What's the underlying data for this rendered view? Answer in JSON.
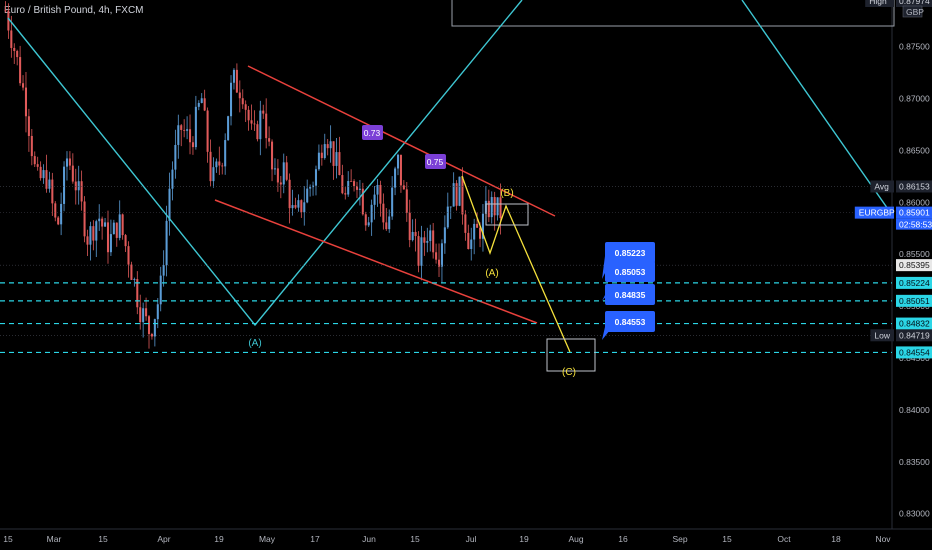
{
  "header": {
    "title": "Euro / British Pound, 4h, FXCM"
  },
  "colors": {
    "background": "#000000",
    "up": "#5b9cd6",
    "down": "#e05a5a",
    "channel": "#e8413c",
    "wave_cyan": "#3ec6d2",
    "wave_yellow": "#f5e13c",
    "level_dash": "#2bd6e6",
    "price_tag_blue": "#2962ff",
    "fib_purple": "#7b3fd6"
  },
  "chart_data": {
    "type": "candlestick",
    "symbol": "EURGBP",
    "timeframe": "4h",
    "ylim": [
      0.8265,
      0.8795
    ],
    "y_ticks": [
      0.83,
      0.835,
      0.84,
      0.845,
      0.85,
      0.855,
      0.86,
      0.865,
      0.87,
      0.875
    ],
    "y_tick_labels": [
      "0.83000",
      "0.83500",
      "0.84000",
      "0.84500",
      "0.85000",
      "0.85500",
      "0.86000",
      "0.86500",
      "0.87000",
      "0.87500"
    ],
    "x_ticks": [
      "15",
      "Mar",
      "15",
      "Apr",
      "19",
      "May",
      "17",
      "Jun",
      "15",
      "Jul",
      "19",
      "Aug",
      "16",
      "Sep",
      "15",
      "Oct",
      "18",
      "Nov"
    ],
    "price_path": [
      0.8785,
      0.8742,
      0.8695,
      0.862,
      0.8625,
      0.8572,
      0.8645,
      0.8612,
      0.8565,
      0.8588,
      0.856,
      0.8582,
      0.8545,
      0.85,
      0.8475,
      0.8512,
      0.8625,
      0.8672,
      0.8658,
      0.8702,
      0.8618,
      0.8645,
      0.8718,
      0.8708,
      0.8658,
      0.8692,
      0.8618,
      0.8632,
      0.8582,
      0.8605,
      0.8625,
      0.8672,
      0.8638,
      0.8602,
      0.8628,
      0.8585,
      0.8615,
      0.8572,
      0.8642,
      0.8585,
      0.8545,
      0.8575,
      0.855,
      0.8605,
      0.8612,
      0.856,
      0.8575,
      0.8598,
      0.859
    ],
    "channel": {
      "upper": [
        [
          0.8768,
          0.8588
        ]
      ],
      "lower": [
        [
          0.8592,
          0.8465
        ]
      ]
    },
    "levels": [
      0.85224,
      0.85051,
      0.84832,
      0.84554
    ],
    "right_axis_tags": [
      {
        "label": "High",
        "value": "0.87974"
      },
      {
        "label": "",
        "value": "GBP"
      },
      {
        "label": "Avg",
        "value": "0.86153"
      },
      {
        "label": "EURGBP",
        "value": "0.85901"
      },
      {
        "label": "",
        "value": "02:58:53"
      },
      {
        "label": "",
        "value": "0.85395"
      },
      {
        "label": "",
        "value": "0.85224"
      },
      {
        "label": "",
        "value": "0.85051"
      },
      {
        "label": "",
        "value": "0.84832"
      },
      {
        "label": "Low",
        "value": "0.84719"
      },
      {
        "label": "",
        "value": "0.84554"
      }
    ],
    "price_callouts": [
      "0.85223",
      "0.85053",
      "0.84835",
      "0.84553"
    ],
    "fib_labels": [
      "0.73",
      "0.75"
    ],
    "wave_labels": {
      "cyan_A": "(A)",
      "yellow_A": "(A)",
      "yellow_B": "(B)",
      "yellow_C": "(C)"
    },
    "grid": false
  }
}
